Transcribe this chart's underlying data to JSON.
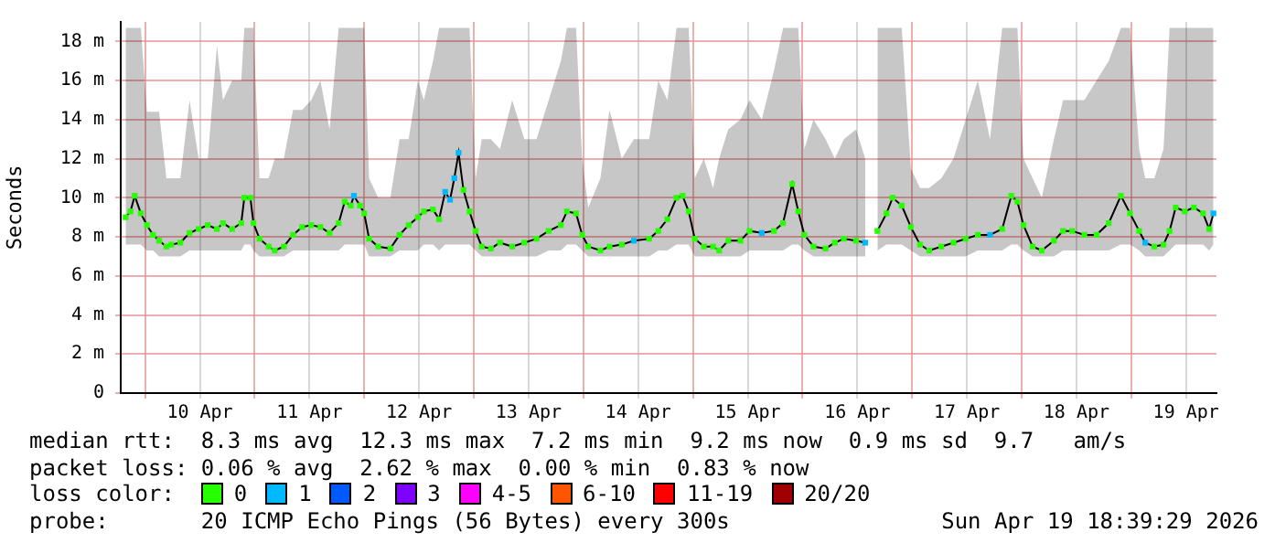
{
  "chart_data": {
    "type": "line",
    "ylabel": "Seconds",
    "legend_title": "loss color:",
    "legend": "bottom",
    "grid": true,
    "marker": "square",
    "xlim": [
      "2026-04-09T18:40",
      "2026-04-19T18:40"
    ],
    "xticks": [
      {
        "value": "2026-04-10T00:00",
        "label": null
      },
      {
        "value": "2026-04-10T12:00",
        "label": "10 Apr"
      },
      {
        "value": "2026-04-11T00:00",
        "label": null
      },
      {
        "value": "2026-04-11T12:00",
        "label": "11 Apr"
      },
      {
        "value": "2026-04-12T00:00",
        "label": null
      },
      {
        "value": "2026-04-12T12:00",
        "label": "12 Apr"
      },
      {
        "value": "2026-04-13T00:00",
        "label": null
      },
      {
        "value": "2026-04-13T12:00",
        "label": "13 Apr"
      },
      {
        "value": "2026-04-14T00:00",
        "label": null
      },
      {
        "value": "2026-04-14T12:00",
        "label": "14 Apr"
      },
      {
        "value": "2026-04-15T00:00",
        "label": null
      },
      {
        "value": "2026-04-15T12:00",
        "label": "15 Apr"
      },
      {
        "value": "2026-04-16T00:00",
        "label": null
      },
      {
        "value": "2026-04-16T12:00",
        "label": "16 Apr"
      },
      {
        "value": "2026-04-17T00:00",
        "label": null
      },
      {
        "value": "2026-04-17T12:00",
        "label": "17 Apr"
      },
      {
        "value": "2026-04-18T00:00",
        "label": null
      },
      {
        "value": "2026-04-18T12:00",
        "label": "18 Apr"
      },
      {
        "value": "2026-04-19T00:00",
        "label": null
      },
      {
        "value": "2026-04-19T12:00",
        "label": "19 Apr"
      }
    ],
    "ylim": [
      0,
      19
    ],
    "yticks": [
      0,
      {
        "value": 2,
        "label": "2 m"
      },
      {
        "value": 4,
        "label": "4 m"
      },
      {
        "value": 6,
        "label": "6 m"
      },
      {
        "value": 8,
        "label": "8 m"
      },
      {
        "value": 10,
        "label": "10 m"
      },
      {
        "value": 12,
        "label": "12 m"
      },
      {
        "value": 14,
        "label": "14 m"
      },
      {
        "value": 16,
        "label": "16 m"
      },
      {
        "value": 18,
        "label": "18 m"
      }
    ],
    "x": [
      "2026-04-09T19:44",
      "2026-04-09T20:48",
      "2026-04-09T21:44",
      "2026-04-09T23:04",
      "2026-04-10T00:24",
      "2026-04-10T01:44",
      "2026-04-10T03:04",
      "2026-04-10T04:40",
      "2026-04-10T05:44",
      "2026-04-10T07:44",
      "2026-04-10T09:44",
      "2026-04-10T11:44",
      "2026-04-10T13:44",
      "2026-04-10T15:44",
      "2026-04-10T17:04",
      "2026-04-10T19:04",
      "2026-04-10T21:04",
      "2026-04-10T21:44",
      "2026-04-10T23:04",
      "2026-04-10T23:44",
      "2026-04-11T01:04",
      "2026-04-11T03:04",
      "2026-04-11T04:24",
      "2026-04-11T06:24",
      "2026-04-11T08:24",
      "2026-04-11T10:24",
      "2026-04-11T12:24",
      "2026-04-11T14:24",
      "2026-04-11T16:24",
      "2026-04-11T18:24",
      "2026-04-11T19:44",
      "2026-04-11T21:04",
      "2026-04-11T21:44",
      "2026-04-11T23:04",
      "2026-04-12T00:00",
      "2026-04-12T01:04",
      "2026-04-12T03:04",
      "2026-04-12T05:44",
      "2026-04-12T07:44",
      "2026-04-12T09:44",
      "2026-04-12T11:44",
      "2026-04-12T13:04",
      "2026-04-12T15:04",
      "2026-04-12T16:24",
      "2026-04-12T17:44",
      "2026-04-12T18:48",
      "2026-04-12T19:44",
      "2026-04-12T20:40",
      "2026-04-12T21:44",
      "2026-04-12T23:04",
      "2026-04-13T00:24",
      "2026-04-13T01:44",
      "2026-04-13T03:44",
      "2026-04-13T05:44",
      "2026-04-13T08:24",
      "2026-04-13T11:04",
      "2026-04-13T13:44",
      "2026-04-13T16:24",
      "2026-04-13T19:04",
      "2026-04-13T20:24",
      "2026-04-13T22:24",
      "2026-04-13T23:44",
      "2026-04-14T01:04",
      "2026-04-14T03:44",
      "2026-04-14T05:44",
      "2026-04-14T08:24",
      "2026-04-14T11:04",
      "2026-04-14T14:24",
      "2026-04-14T16:24",
      "2026-04-14T18:24",
      "2026-04-14T20:24",
      "2026-04-14T21:44",
      "2026-04-14T23:04",
      "2026-04-15T00:24",
      "2026-04-15T02:24",
      "2026-04-15T04:24",
      "2026-04-15T05:44",
      "2026-04-15T07:44",
      "2026-04-15T10:24",
      "2026-04-15T12:24",
      "2026-04-15T15:04",
      "2026-04-15T17:44",
      "2026-04-15T19:44",
      "2026-04-15T21:44",
      "2026-04-15T23:04",
      "2026-04-16T00:24",
      "2026-04-16T02:24",
      "2026-04-16T05:04",
      "2026-04-16T07:04",
      "2026-04-16T09:04",
      "2026-04-16T11:44",
      "2026-04-16T13:44",
      "2026-04-16T15:04",
      "2026-04-16T16:24",
      "2026-04-16T18:24",
      "2026-04-16T19:44",
      "2026-04-16T21:44",
      "2026-04-16T23:44",
      "2026-04-17T01:44",
      "2026-04-17T03:44",
      "2026-04-17T06:24",
      "2026-04-17T09:04",
      "2026-04-17T11:44",
      "2026-04-17T14:24",
      "2026-04-17T17:04",
      "2026-04-17T19:44",
      "2026-04-17T21:44",
      "2026-04-17T23:04",
      "2026-04-18T00:24",
      "2026-04-18T02:24",
      "2026-04-18T04:24",
      "2026-04-18T07:04",
      "2026-04-18T09:04",
      "2026-04-18T11:04",
      "2026-04-18T13:44",
      "2026-04-18T16:24",
      "2026-04-18T19:04",
      "2026-04-18T21:44",
      "2026-04-18T23:44",
      "2026-04-19T01:44",
      "2026-04-19T03:04",
      "2026-04-19T05:04",
      "2026-04-19T07:04",
      "2026-04-19T08:24",
      "2026-04-19T09:44",
      "2026-04-19T11:44",
      "2026-04-19T13:44",
      "2026-04-19T15:44",
      "2026-04-19T17:04",
      "2026-04-19T18:00"
    ],
    "series": [
      {
        "marker": "none",
        "color": "#000000",
        "values": [
          9.0,
          9.3,
          10.1,
          9.2,
          8.6,
          8.1,
          7.8,
          7.5,
          7.6,
          7.7,
          8.2,
          8.4,
          8.6,
          8.4,
          8.7,
          8.4,
          8.7,
          10.0,
          10.0,
          8.7,
          7.9,
          7.5,
          7.3,
          7.5,
          8.1,
          8.5,
          8.6,
          8.5,
          8.2,
          8.7,
          9.8,
          9.6,
          10.1,
          9.6,
          9.2,
          7.9,
          7.5,
          7.4,
          8.1,
          8.6,
          9.0,
          9.3,
          9.4,
          8.9,
          10.3,
          9.9,
          11.0,
          12.3,
          10.4,
          9.3,
          8.3,
          7.5,
          7.4,
          7.7,
          7.5,
          7.7,
          7.9,
          8.3,
          8.6,
          9.3,
          9.2,
          8.1,
          7.5,
          7.3,
          7.5,
          7.6,
          7.8,
          7.9,
          8.3,
          8.9,
          10.0,
          10.1,
          9.3,
          7.9,
          7.5,
          7.5,
          7.3,
          7.8,
          7.8,
          8.3,
          8.2,
          8.3,
          8.7,
          10.7,
          9.3,
          8.1,
          7.5,
          7.4,
          7.7,
          7.9,
          7.8,
          7.7,
          null,
          8.3,
          9.2,
          10.0,
          9.6,
          8.5,
          7.6,
          7.3,
          7.5,
          7.7,
          7.9,
          8.1,
          8.1,
          8.4,
          10.1,
          9.8,
          8.6,
          7.5,
          7.3,
          7.8,
          8.3,
          8.3,
          8.1,
          8.1,
          8.7,
          10.1,
          9.2,
          8.3,
          7.7,
          7.5,
          7.6,
          8.3,
          9.5,
          9.3,
          9.5,
          9.2,
          8.4,
          9.2
        ],
        "lower": [
          7.6,
          7.6,
          7.6,
          7.6,
          7.3,
          7.3,
          7.0,
          7.0,
          7.0,
          7.0,
          7.3,
          7.3,
          7.3,
          7.3,
          7.3,
          7.3,
          7.3,
          7.6,
          7.6,
          7.3,
          7.0,
          7.0,
          7.0,
          7.0,
          7.3,
          7.3,
          7.3,
          7.3,
          7.3,
          7.3,
          7.6,
          7.6,
          7.6,
          7.6,
          7.6,
          7.0,
          7.0,
          7.0,
          7.3,
          7.3,
          7.3,
          7.6,
          7.6,
          7.3,
          7.6,
          7.6,
          7.6,
          7.6,
          7.6,
          7.6,
          7.3,
          7.0,
          7.0,
          7.0,
          7.0,
          7.0,
          7.0,
          7.3,
          7.3,
          7.6,
          7.6,
          7.3,
          7.0,
          7.0,
          7.0,
          7.0,
          7.0,
          7.0,
          7.3,
          7.3,
          7.6,
          7.6,
          7.6,
          7.0,
          7.0,
          7.0,
          7.0,
          7.0,
          7.0,
          7.3,
          7.3,
          7.3,
          7.3,
          7.6,
          7.6,
          7.3,
          7.0,
          7.0,
          7.0,
          7.0,
          7.0,
          7.0,
          null,
          7.3,
          7.6,
          7.6,
          7.6,
          7.3,
          7.0,
          7.0,
          7.0,
          7.0,
          7.0,
          7.3,
          7.3,
          7.3,
          7.6,
          7.6,
          7.3,
          7.0,
          7.0,
          7.0,
          7.3,
          7.3,
          7.3,
          7.3,
          7.3,
          7.6,
          7.6,
          7.3,
          7.0,
          7.0,
          7.0,
          7.3,
          7.6,
          7.6,
          7.6,
          7.6,
          7.3,
          7.6
        ],
        "upper": [
          18.7,
          18.7,
          18.7,
          18.7,
          14.4,
          14.4,
          14.4,
          11,
          11,
          11,
          15,
          12,
          12,
          17.8,
          15,
          16,
          16,
          18.7,
          18.7,
          18.7,
          11,
          11,
          12,
          12,
          14.5,
          14.5,
          15,
          16,
          13.5,
          18.7,
          18.7,
          18.7,
          18.7,
          18.7,
          18.7,
          11,
          10,
          10,
          13,
          13,
          16,
          15,
          17,
          18.7,
          18.7,
          18.7,
          18.7,
          18.7,
          18.7,
          18.7,
          11,
          13,
          13,
          12.5,
          15,
          13,
          13,
          15,
          17,
          18.7,
          18.7,
          12,
          9.5,
          11,
          14.5,
          12,
          13,
          13,
          16,
          15,
          18.7,
          18.7,
          18.7,
          11,
          12,
          10.5,
          12,
          13.5,
          14,
          15,
          14,
          16.5,
          18.7,
          18.7,
          18.7,
          12.5,
          14,
          13,
          12,
          13,
          13.5,
          12,
          null,
          18.7,
          18.7,
          18.7,
          18.7,
          11.5,
          10.5,
          10.5,
          11,
          12,
          14,
          16,
          13,
          18.7,
          18.7,
          18.7,
          12,
          11,
          10,
          13,
          15,
          15,
          15,
          16,
          17,
          18.7,
          18.7,
          12.5,
          11,
          11,
          12.5,
          18.7,
          18.7,
          18.7,
          18.7,
          18.7,
          18.7,
          18.7
        ]
      },
      {
        "type": "scatter",
        "name": "0",
        "color": "#26ff00",
        "values": [
          9.0,
          9.3,
          10.1,
          9.2,
          8.6,
          8.1,
          7.8,
          7.5,
          7.6,
          7.7,
          8.2,
          8.4,
          8.6,
          8.4,
          8.7,
          8.4,
          8.7,
          10.0,
          10.0,
          8.7,
          7.9,
          7.5,
          7.3,
          7.5,
          8.1,
          8.5,
          8.6,
          8.5,
          8.2,
          8.7,
          9.8,
          9.6,
          null,
          9.6,
          9.2,
          7.9,
          7.5,
          7.4,
          8.1,
          8.6,
          9.0,
          9.3,
          9.4,
          8.9,
          null,
          null,
          null,
          null,
          10.4,
          9.3,
          8.3,
          7.5,
          7.4,
          7.7,
          7.5,
          7.7,
          7.9,
          8.3,
          8.6,
          9.3,
          9.2,
          8.1,
          7.5,
          7.3,
          7.5,
          7.6,
          null,
          7.9,
          8.3,
          8.9,
          10.0,
          10.1,
          9.3,
          7.9,
          7.5,
          7.5,
          7.3,
          7.8,
          7.8,
          8.3,
          null,
          8.3,
          8.7,
          10.7,
          9.3,
          8.1,
          7.5,
          7.4,
          7.7,
          7.9,
          7.8,
          null,
          null,
          8.3,
          9.2,
          10.0,
          9.6,
          8.5,
          7.6,
          7.3,
          7.5,
          7.7,
          7.9,
          8.1,
          null,
          8.4,
          10.1,
          9.8,
          8.6,
          7.5,
          7.3,
          7.8,
          8.3,
          8.3,
          8.1,
          8.1,
          8.7,
          10.1,
          9.2,
          8.3,
          null,
          7.5,
          7.6,
          8.3,
          9.5,
          9.3,
          9.5,
          9.2,
          8.4,
          null
        ]
      },
      {
        "type": "scatter",
        "name": "1",
        "color": "#00b8ff",
        "values": [
          null,
          null,
          null,
          null,
          null,
          null,
          null,
          null,
          null,
          null,
          null,
          null,
          null,
          null,
          null,
          null,
          null,
          null,
          null,
          null,
          null,
          null,
          null,
          null,
          null,
          null,
          null,
          null,
          null,
          null,
          null,
          null,
          10.1,
          null,
          null,
          null,
          null,
          null,
          null,
          null,
          null,
          null,
          null,
          null,
          10.3,
          9.9,
          11.0,
          12.3,
          null,
          null,
          null,
          null,
          null,
          null,
          null,
          null,
          null,
          null,
          null,
          null,
          null,
          null,
          null,
          null,
          null,
          null,
          7.8,
          null,
          null,
          null,
          null,
          null,
          null,
          null,
          null,
          null,
          null,
          null,
          null,
          null,
          8.2,
          null,
          null,
          null,
          null,
          null,
          null,
          null,
          null,
          null,
          null,
          7.7,
          null,
          null,
          null,
          null,
          null,
          null,
          null,
          null,
          null,
          null,
          null,
          null,
          8.1,
          null,
          null,
          null,
          null,
          null,
          null,
          null,
          null,
          null,
          null,
          null,
          null,
          null,
          null,
          null,
          7.7,
          null,
          null,
          null,
          null,
          null,
          null,
          null,
          null,
          9.2
        ]
      },
      {
        "type": "scatter",
        "name": "2",
        "color": "#0059ff",
        "values": [
          null,
          null,
          null,
          null,
          null,
          null,
          null,
          null,
          null,
          null,
          null,
          null,
          null,
          null,
          null,
          null,
          null,
          null,
          null,
          null,
          null,
          null,
          null,
          null,
          null,
          null,
          null,
          null,
          null,
          null,
          null,
          null,
          null,
          null,
          null,
          null,
          null,
          null,
          null,
          null,
          null,
          null,
          null,
          null,
          null,
          null,
          null,
          null,
          null,
          null,
          null,
          null,
          null,
          null,
          null,
          null,
          null,
          null,
          null,
          null,
          null,
          null,
          null,
          null,
          null,
          null,
          null,
          null,
          null,
          null,
          null,
          null,
          null,
          null,
          null,
          null,
          null,
          null,
          null,
          null,
          null,
          null,
          null,
          null,
          null,
          null,
          null,
          null,
          null,
          null,
          null,
          null,
          null,
          null,
          null,
          null,
          null,
          null,
          null,
          null,
          null,
          null,
          null,
          null,
          null,
          null,
          null,
          null,
          null,
          null,
          null,
          null,
          null,
          null,
          null,
          null,
          null,
          null,
          null,
          null,
          null,
          null,
          null,
          null,
          null,
          null,
          null,
          null,
          null,
          null
        ]
      },
      {
        "type": "scatter",
        "name": "3",
        "color": "#7e00ff",
        "values": [
          null,
          null,
          null,
          null,
          null,
          null,
          null,
          null,
          null,
          null,
          null,
          null,
          null,
          null,
          null,
          null,
          null,
          null,
          null,
          null,
          null,
          null,
          null,
          null,
          null,
          null,
          null,
          null,
          null,
          null,
          null,
          null,
          null,
          null,
          null,
          null,
          null,
          null,
          null,
          null,
          null,
          null,
          null,
          null,
          null,
          null,
          null,
          null,
          null,
          null,
          null,
          null,
          null,
          null,
          null,
          null,
          null,
          null,
          null,
          null,
          null,
          null,
          null,
          null,
          null,
          null,
          null,
          null,
          null,
          null,
          null,
          null,
          null,
          null,
          null,
          null,
          null,
          null,
          null,
          null,
          null,
          null,
          null,
          null,
          null,
          null,
          null,
          null,
          null,
          null,
          null,
          null,
          null,
          null,
          null,
          null,
          null,
          null,
          null,
          null,
          null,
          null,
          null,
          null,
          null,
          null,
          null,
          null,
          null,
          null,
          null,
          null,
          null,
          null,
          null,
          null,
          null,
          null,
          null,
          null,
          null,
          null,
          null,
          null,
          null,
          null,
          null,
          null,
          null,
          null
        ]
      },
      {
        "type": "scatter",
        "name": "4-5",
        "color": "#ff00ff",
        "values": [
          null,
          null,
          null,
          null,
          null,
          null,
          null,
          null,
          null,
          null,
          null,
          null,
          null,
          null,
          null,
          null,
          null,
          null,
          null,
          null,
          null,
          null,
          null,
          null,
          null,
          null,
          null,
          null,
          null,
          null,
          null,
          null,
          null,
          null,
          null,
          null,
          null,
          null,
          null,
          null,
          null,
          null,
          null,
          null,
          null,
          null,
          null,
          null,
          null,
          null,
          null,
          null,
          null,
          null,
          null,
          null,
          null,
          null,
          null,
          null,
          null,
          null,
          null,
          null,
          null,
          null,
          null,
          null,
          null,
          null,
          null,
          null,
          null,
          null,
          null,
          null,
          null,
          null,
          null,
          null,
          null,
          null,
          null,
          null,
          null,
          null,
          null,
          null,
          null,
          null,
          null,
          null,
          null,
          null,
          null,
          null,
          null,
          null,
          null,
          null,
          null,
          null,
          null,
          null,
          null,
          null,
          null,
          null,
          null,
          null,
          null,
          null,
          null,
          null,
          null,
          null,
          null,
          null,
          null,
          null,
          null,
          null,
          null,
          null,
          null,
          null,
          null,
          null,
          null,
          null
        ]
      },
      {
        "type": "scatter",
        "name": "6-10",
        "color": "#ff5500",
        "values": [
          null,
          null,
          null,
          null,
          null,
          null,
          null,
          null,
          null,
          null,
          null,
          null,
          null,
          null,
          null,
          null,
          null,
          null,
          null,
          null,
          null,
          null,
          null,
          null,
          null,
          null,
          null,
          null,
          null,
          null,
          null,
          null,
          null,
          null,
          null,
          null,
          null,
          null,
          null,
          null,
          null,
          null,
          null,
          null,
          null,
          null,
          null,
          null,
          null,
          null,
          null,
          null,
          null,
          null,
          null,
          null,
          null,
          null,
          null,
          null,
          null,
          null,
          null,
          null,
          null,
          null,
          null,
          null,
          null,
          null,
          null,
          null,
          null,
          null,
          null,
          null,
          null,
          null,
          null,
          null,
          null,
          null,
          null,
          null,
          null,
          null,
          null,
          null,
          null,
          null,
          null,
          null,
          null,
          null,
          null,
          null,
          null,
          null,
          null,
          null,
          null,
          null,
          null,
          null,
          null,
          null,
          null,
          null,
          null,
          null,
          null,
          null,
          null,
          null,
          null,
          null,
          null,
          null,
          null,
          null,
          null,
          null,
          null,
          null,
          null,
          null,
          null,
          null,
          null,
          null
        ]
      },
      {
        "type": "scatter",
        "name": "11-19",
        "color": "#ff0000",
        "values": [
          null,
          null,
          null,
          null,
          null,
          null,
          null,
          null,
          null,
          null,
          null,
          null,
          null,
          null,
          null,
          null,
          null,
          null,
          null,
          null,
          null,
          null,
          null,
          null,
          null,
          null,
          null,
          null,
          null,
          null,
          null,
          null,
          null,
          null,
          null,
          null,
          null,
          null,
          null,
          null,
          null,
          null,
          null,
          null,
          null,
          null,
          null,
          null,
          null,
          null,
          null,
          null,
          null,
          null,
          null,
          null,
          null,
          null,
          null,
          null,
          null,
          null,
          null,
          null,
          null,
          null,
          null,
          null,
          null,
          null,
          null,
          null,
          null,
          null,
          null,
          null,
          null,
          null,
          null,
          null,
          null,
          null,
          null,
          null,
          null,
          null,
          null,
          null,
          null,
          null,
          null,
          null,
          null,
          null,
          null,
          null,
          null,
          null,
          null,
          null,
          null,
          null,
          null,
          null,
          null,
          null,
          null,
          null,
          null,
          null,
          null,
          null,
          null,
          null,
          null,
          null,
          null,
          null,
          null,
          null,
          null,
          null,
          null,
          null,
          null,
          null,
          null,
          null,
          null,
          null
        ]
      },
      {
        "type": "scatter",
        "name": "20/20",
        "color": "#a10000",
        "values": [
          null,
          null,
          null,
          null,
          null,
          null,
          null,
          null,
          null,
          null,
          null,
          null,
          null,
          null,
          null,
          null,
          null,
          null,
          null,
          null,
          null,
          null,
          null,
          null,
          null,
          null,
          null,
          null,
          null,
          null,
          null,
          null,
          null,
          null,
          null,
          null,
          null,
          null,
          null,
          null,
          null,
          null,
          null,
          null,
          null,
          null,
          null,
          null,
          null,
          null,
          null,
          null,
          null,
          null,
          null,
          null,
          null,
          null,
          null,
          null,
          null,
          null,
          null,
          null,
          null,
          null,
          null,
          null,
          null,
          null,
          null,
          null,
          null,
          null,
          null,
          null,
          null,
          null,
          null,
          null,
          null,
          null,
          null,
          null,
          null,
          null,
          null,
          null,
          null,
          null,
          null,
          null,
          null,
          null,
          null,
          null,
          null,
          null,
          null,
          null,
          null,
          null,
          null,
          null,
          null,
          null,
          null,
          null,
          null,
          null,
          null,
          null,
          null,
          null,
          null,
          null,
          null,
          null,
          null,
          null,
          null,
          null,
          null,
          null,
          null,
          null,
          null,
          null,
          null,
          null
        ]
      }
    ],
    "annotations": [
      "median rtt:  8.3 ms avg  12.3 ms max  7.2 ms min  9.2 ms now  0.9 ms sd  9.7   am/s",
      "packet loss: 0.06 % avg  2.62 % max  0.00 % min  0.83 % now",
      "probe:       20 ICMP Echo Pings (56 Bytes) every 300s",
      "Sun Apr 19 18:39:29 2026"
    ]
  }
}
